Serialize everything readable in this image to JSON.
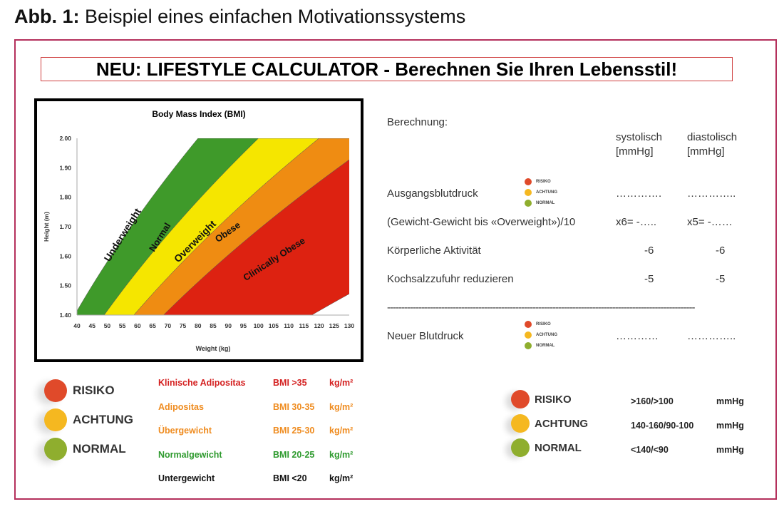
{
  "caption": {
    "label": "Abb. 1:",
    "text": "Beispiel eines einfachen Motivationssystems"
  },
  "title": "NEU: LIFESTYLE CALCULATOR - Berechnen Sie Ihren Lebensstil!",
  "chart_data": {
    "type": "area",
    "title": "Body Mass Index (BMI)",
    "xlabel": "Weight (kg)",
    "ylabel": "Height (m)",
    "xlim": [
      40,
      130
    ],
    "ylim": [
      1.4,
      2.0
    ],
    "xticks": [
      "40",
      "45",
      "50",
      "55",
      "60",
      "65",
      "70",
      "75",
      "80",
      "85",
      "90",
      "95",
      "100",
      "105",
      "110",
      "115",
      "120",
      "125",
      "130"
    ],
    "yticks": [
      "1.40",
      "1.50",
      "1.60",
      "1.70",
      "1.80",
      "1.90",
      "2.00"
    ],
    "bands": [
      {
        "name": "Underweight",
        "bmi": [
          0,
          20
        ],
        "color": "#ffffff"
      },
      {
        "name": "Normal",
        "bmi": [
          20,
          25
        ],
        "color": "#3f9a2a"
      },
      {
        "name": "Overweight",
        "bmi": [
          25,
          30
        ],
        "color": "#f5e600"
      },
      {
        "name": "Obese",
        "bmi": [
          30,
          35
        ],
        "color": "#ef8c12"
      },
      {
        "name": "Clinically Obese",
        "bmi": [
          35,
          60
        ],
        "color": "#dd2211"
      }
    ]
  },
  "calc": {
    "heading": "Berechnung:",
    "col1": [
      "systolisch",
      "[mmHg]"
    ],
    "col2": [
      "diastolisch",
      "[mmHg]"
    ],
    "rows": [
      {
        "label": "Ausgangsblutdruck",
        "sys": "………….",
        "dia": "………….."
      },
      {
        "label": "(Gewicht-Gewicht bis «Overweight»)/10",
        "sys": "x6=   -…..",
        "dia": "x5=   -……"
      },
      {
        "label": "Körperliche Aktivität",
        "sys": "-6",
        "dia": "-6"
      },
      {
        "label": "Kochsalzzufuhr reduzieren",
        "sys": "-5",
        "dia": "-5"
      }
    ],
    "divider": "------------------------------------------------------------------------------------------------------------",
    "result": {
      "label": "Neuer Blutdruck",
      "sys": "…………",
      "dia": "………….."
    },
    "mini": [
      "RISIKO",
      "ACHTUNG",
      "NORMAL"
    ]
  },
  "legend": [
    {
      "label": "RISIKO",
      "color": "#e04a2a"
    },
    {
      "label": "ACHTUNG",
      "color": "#f5b820"
    },
    {
      "label": "NORMAL",
      "color": "#8fae2e"
    }
  ],
  "bmi_table": [
    {
      "name": "Klinische Adipositas",
      "range": "BMI >35",
      "unit": "kg/m²",
      "color": "#d42020"
    },
    {
      "name": "Adipositas",
      "range": "BMI 30-35",
      "unit": "kg/m²",
      "color": "#ef8c20"
    },
    {
      "name": "Übergewicht",
      "range": "BMI 25-30",
      "unit": "kg/m²",
      "color": "#ef8c20"
    },
    {
      "name": "Normalgewicht",
      "range": "BMI 20-25",
      "unit": "kg/m²",
      "color": "#2e9a2e"
    },
    {
      "name": "Untergewicht",
      "range": "BMI <20",
      "unit": "kg/m²",
      "color": "#111111"
    }
  ],
  "bp_table": [
    {
      "range": ">160/>100",
      "unit": "mmHg"
    },
    {
      "range": "140-160/90-100",
      "unit": "mmHg"
    },
    {
      "range": "<140/<90",
      "unit": "mmHg"
    }
  ]
}
